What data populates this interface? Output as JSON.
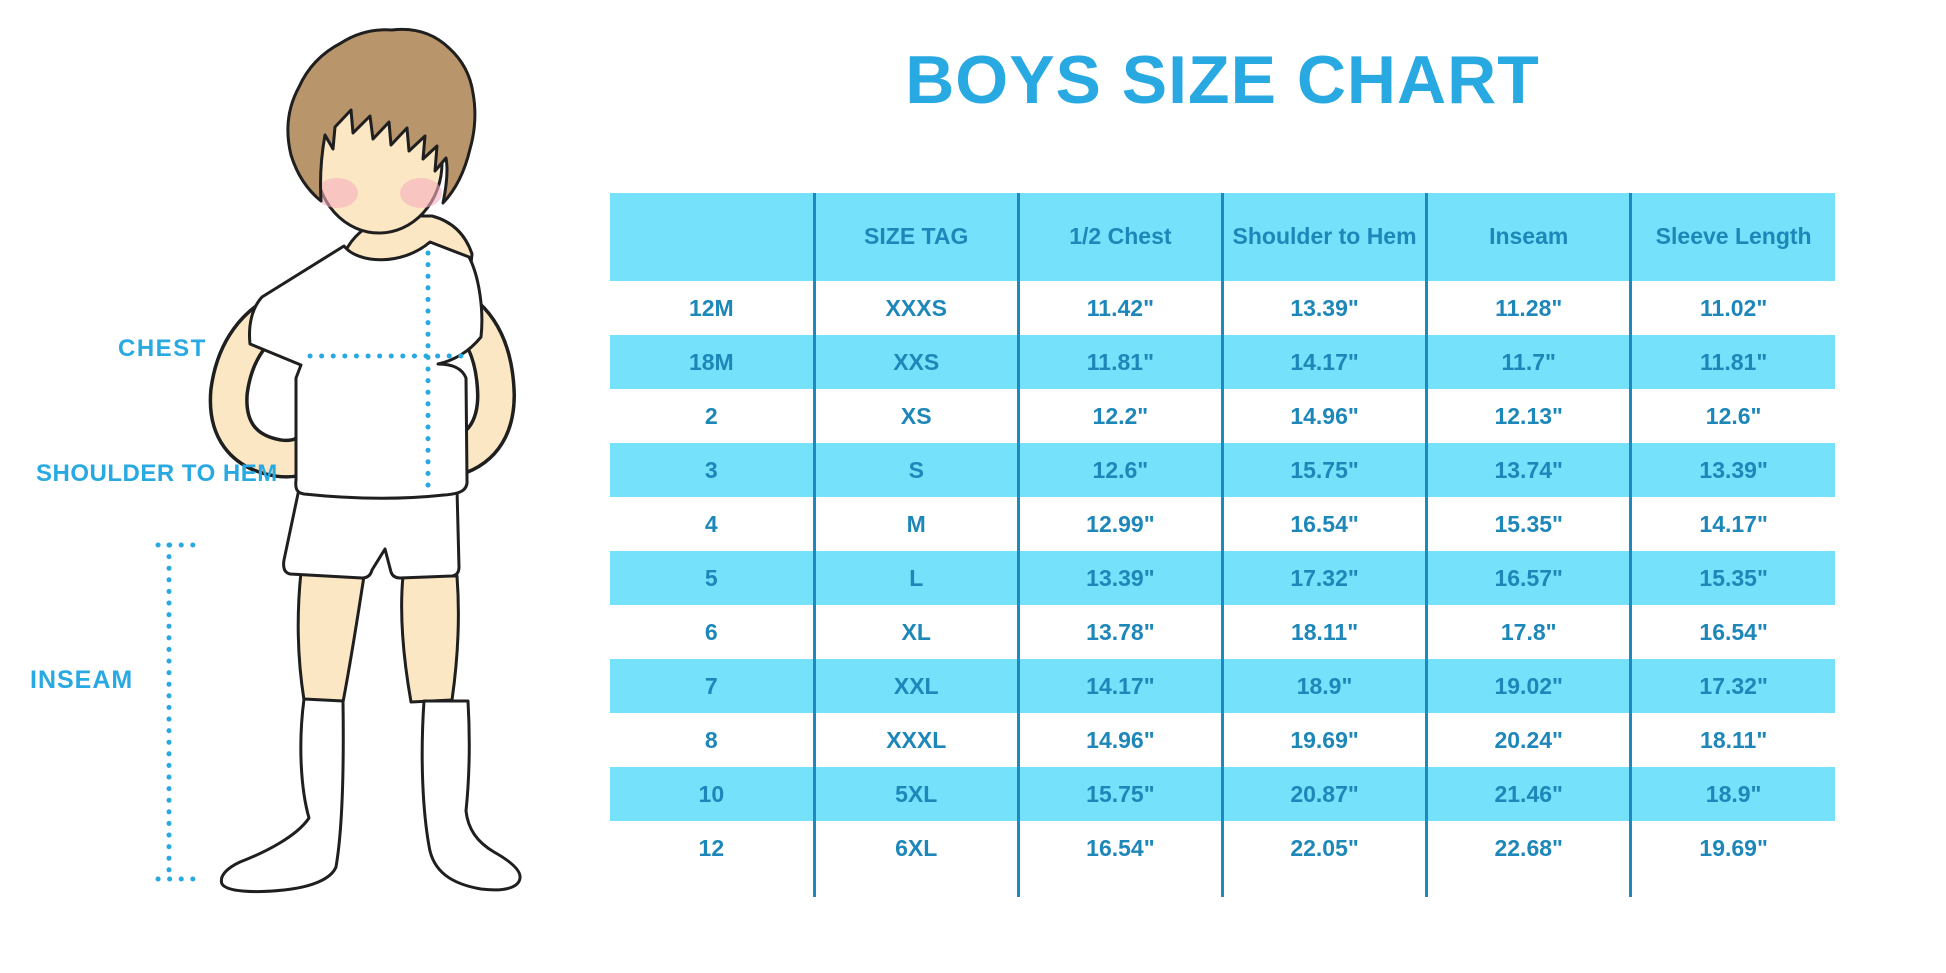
{
  "title": "BOYS SIZE CHART",
  "figure_labels": {
    "chest": "CHEST",
    "shoulder_to_hem": "SHOULDER TO HEM",
    "inseam": "INSEAM"
  },
  "colors": {
    "accent_blue": "#29A9E1",
    "table_text": "#1D87B9",
    "stripe_bg": "#75E1FA",
    "divider": "#1B8AC0"
  },
  "chart_data": {
    "type": "table",
    "title": "BOYS SIZE CHART",
    "columns": [
      "",
      "SIZE TAG",
      "1/2 Chest",
      "Shoulder to Hem",
      "Inseam",
      "Sleeve Length"
    ],
    "rows": [
      [
        "12M",
        "XXXS",
        "11.42\"",
        "13.39\"",
        "11.28\"",
        "11.02\""
      ],
      [
        "18M",
        "XXS",
        "11.81\"",
        "14.17\"",
        "11.7\"",
        "11.81\""
      ],
      [
        "2",
        "XS",
        "12.2\"",
        "14.96\"",
        "12.13\"",
        "12.6\""
      ],
      [
        "3",
        "S",
        "12.6\"",
        "15.75\"",
        "13.74\"",
        "13.39\""
      ],
      [
        "4",
        "M",
        "12.99\"",
        "16.54\"",
        "15.35\"",
        "14.17\""
      ],
      [
        "5",
        "L",
        "13.39\"",
        "17.32\"",
        "16.57\"",
        "15.35\""
      ],
      [
        "6",
        "XL",
        "13.78\"",
        "18.11\"",
        "17.8\"",
        "16.54\""
      ],
      [
        "7",
        "XXL",
        "14.17\"",
        "18.9\"",
        "19.02\"",
        "17.32\""
      ],
      [
        "8",
        "XXXL",
        "14.96\"",
        "19.69\"",
        "20.24\"",
        "18.11\""
      ],
      [
        "10",
        "5XL",
        "15.75\"",
        "20.87\"",
        "21.46\"",
        "18.9\""
      ],
      [
        "12",
        "6XL",
        "16.54\"",
        "22.05\"",
        "22.68\"",
        "19.69\""
      ]
    ]
  }
}
